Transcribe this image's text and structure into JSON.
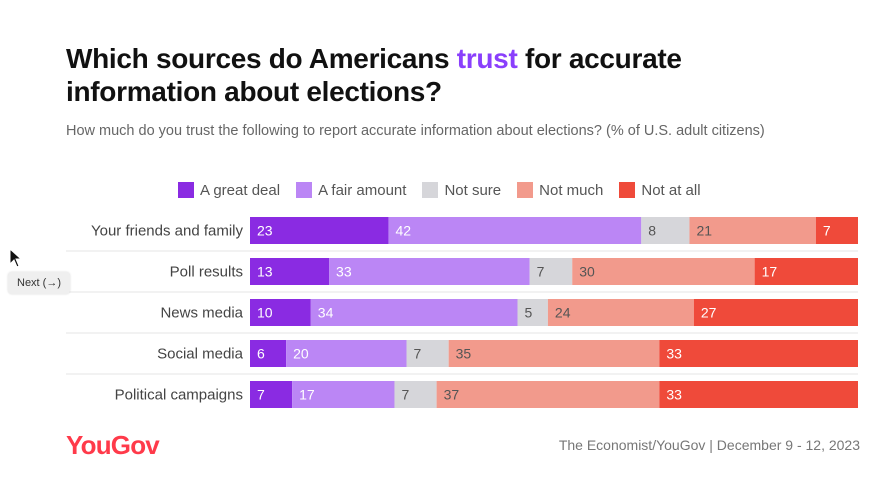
{
  "title": {
    "part1": "Which sources do Americans ",
    "accent": "trust",
    "part2": " for accurate information about elections?"
  },
  "subtitle": "How much do you trust the following to report accurate information about elections? (% of U.S. adult citizens)",
  "footer": {
    "logo": "YouGov",
    "source": "The Economist/YouGov | December 9 - 12, 2023"
  },
  "overlay": {
    "next_button": "Next (→)"
  },
  "colors": {
    "accent": "#8a3ffc",
    "logo": "#ff3a4a"
  },
  "chart_data": {
    "type": "bar",
    "orientation": "horizontal",
    "stacked": true,
    "categories": [
      "Your friends and family",
      "Poll results",
      "News media",
      "Social media",
      "Political campaigns"
    ],
    "series": [
      {
        "name": "A great deal",
        "color": "#8a2be2",
        "label_color": "#ffffff",
        "values": [
          23,
          13,
          10,
          6,
          7
        ]
      },
      {
        "name": "A fair amount",
        "color": "#bb86f5",
        "label_color": "#ffffff",
        "values": [
          42,
          33,
          34,
          20,
          17
        ]
      },
      {
        "name": "Not sure",
        "color": "#d6d6da",
        "label_color": "#555555",
        "values": [
          8,
          7,
          5,
          7,
          7
        ]
      },
      {
        "name": "Not much",
        "color": "#f29a8c",
        "label_color": "#555555",
        "values": [
          21,
          30,
          24,
          35,
          37
        ]
      },
      {
        "name": "Not at all",
        "color": "#ef4a3a",
        "label_color": "#ffffff",
        "values": [
          7,
          17,
          27,
          33,
          33
        ]
      }
    ],
    "legend_position": "top"
  }
}
